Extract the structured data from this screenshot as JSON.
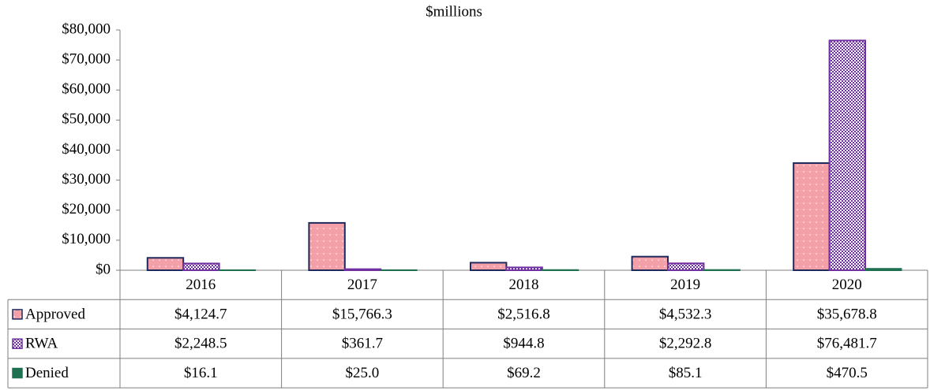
{
  "chart_data": {
    "type": "bar",
    "title": "$millions",
    "categories": [
      "2016",
      "2017",
      "2018",
      "2019",
      "2020"
    ],
    "series": [
      {
        "name": "Approved",
        "color": "#f4a0a8",
        "values": [
          4124.7,
          15766.3,
          2516.8,
          4532.3,
          35678.8
        ],
        "value_labels": [
          "$4,124.7",
          "$15,766.3",
          "$2,516.8",
          "$4,532.3",
          "$35,678.8"
        ]
      },
      {
        "name": "RWA",
        "color": "#7030a0",
        "values": [
          2248.5,
          361.7,
          944.8,
          2292.8,
          76481.7
        ],
        "value_labels": [
          "$2,248.5",
          "$361.7",
          "$944.8",
          "$2,292.8",
          "$76,481.7"
        ]
      },
      {
        "name": "Denied",
        "color": "#1e7050",
        "values": [
          16.1,
          25.0,
          69.2,
          85.1,
          470.5
        ],
        "value_labels": [
          "$16.1",
          "$25.0",
          "$69.2",
          "$85.1",
          "$470.5"
        ]
      }
    ],
    "ylim": [
      0,
      80000
    ],
    "yticks": [
      {
        "value": 0,
        "label": "$0"
      },
      {
        "value": 10000,
        "label": "$10,000"
      },
      {
        "value": 20000,
        "label": "$20,000"
      },
      {
        "value": 30000,
        "label": "$30,000"
      },
      {
        "value": 40000,
        "label": "$40,000"
      },
      {
        "value": 50000,
        "label": "$50,000"
      },
      {
        "value": 60000,
        "label": "$60,000"
      },
      {
        "value": 70000,
        "label": "$70,000"
      },
      {
        "value": 80000,
        "label": "$80,000"
      }
    ],
    "grid": false
  }
}
